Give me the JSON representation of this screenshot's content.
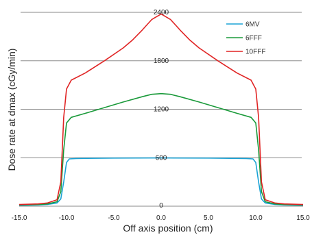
{
  "chart_data": {
    "type": "line",
    "xlabel": "Off axis position (cm)",
    "ylabel": "Dose rate at dmax (cGy/min)",
    "xlim": [
      -15,
      15
    ],
    "ylim": [
      0,
      2400
    ],
    "x_ticks": [
      "-15.0",
      "-10.0",
      "-5.0",
      "0.0",
      "5.0",
      "10.0",
      "15.0"
    ],
    "y_ticks": [
      "0",
      "600",
      "1200",
      "1800",
      "2400"
    ],
    "grid": "horizontal",
    "legend_position": "top-right",
    "series": [
      {
        "name": "6MV",
        "color": "#1aa3d6",
        "points": [
          [
            -15,
            10
          ],
          [
            -13,
            15
          ],
          [
            -12,
            22
          ],
          [
            -11,
            40
          ],
          [
            -10.6,
            90
          ],
          [
            -10.3,
            300
          ],
          [
            -10.0,
            540
          ],
          [
            -9.7,
            585
          ],
          [
            -9,
            590
          ],
          [
            -5,
            595
          ],
          [
            0,
            597
          ],
          [
            5,
            595
          ],
          [
            9,
            590
          ],
          [
            9.7,
            585
          ],
          [
            10.0,
            540
          ],
          [
            10.3,
            300
          ],
          [
            10.6,
            90
          ],
          [
            11,
            40
          ],
          [
            12,
            22
          ],
          [
            13,
            15
          ],
          [
            15,
            10
          ]
        ]
      },
      {
        "name": "6FFF",
        "color": "#1a9a3a",
        "points": [
          [
            -15,
            15
          ],
          [
            -13,
            20
          ],
          [
            -12,
            28
          ],
          [
            -11,
            55
          ],
          [
            -10.6,
            180
          ],
          [
            -10.3,
            700
          ],
          [
            -10.0,
            1030
          ],
          [
            -9.5,
            1100
          ],
          [
            -8,
            1150
          ],
          [
            -6,
            1220
          ],
          [
            -4,
            1290
          ],
          [
            -2,
            1355
          ],
          [
            -1,
            1385
          ],
          [
            0,
            1393
          ],
          [
            1,
            1385
          ],
          [
            2,
            1355
          ],
          [
            4,
            1290
          ],
          [
            6,
            1220
          ],
          [
            8,
            1150
          ],
          [
            9.5,
            1100
          ],
          [
            10.0,
            1030
          ],
          [
            10.3,
            700
          ],
          [
            10.6,
            180
          ],
          [
            11,
            55
          ],
          [
            12,
            28
          ],
          [
            13,
            20
          ],
          [
            15,
            15
          ]
        ]
      },
      {
        "name": "10FFF",
        "color": "#e02424",
        "points": [
          [
            -15,
            20
          ],
          [
            -13,
            28
          ],
          [
            -12,
            40
          ],
          [
            -11,
            80
          ],
          [
            -10.6,
            300
          ],
          [
            -10.3,
            1100
          ],
          [
            -10.0,
            1450
          ],
          [
            -9.5,
            1560
          ],
          [
            -8,
            1650
          ],
          [
            -6,
            1800
          ],
          [
            -4,
            1960
          ],
          [
            -3,
            2060
          ],
          [
            -2,
            2180
          ],
          [
            -1,
            2310
          ],
          [
            0,
            2380
          ],
          [
            1,
            2310
          ],
          [
            2,
            2180
          ],
          [
            3,
            2060
          ],
          [
            4,
            1960
          ],
          [
            6,
            1800
          ],
          [
            8,
            1650
          ],
          [
            9.5,
            1560
          ],
          [
            10.0,
            1450
          ],
          [
            10.3,
            1100
          ],
          [
            10.6,
            300
          ],
          [
            11,
            80
          ],
          [
            12,
            40
          ],
          [
            13,
            28
          ],
          [
            15,
            20
          ]
        ]
      }
    ]
  }
}
